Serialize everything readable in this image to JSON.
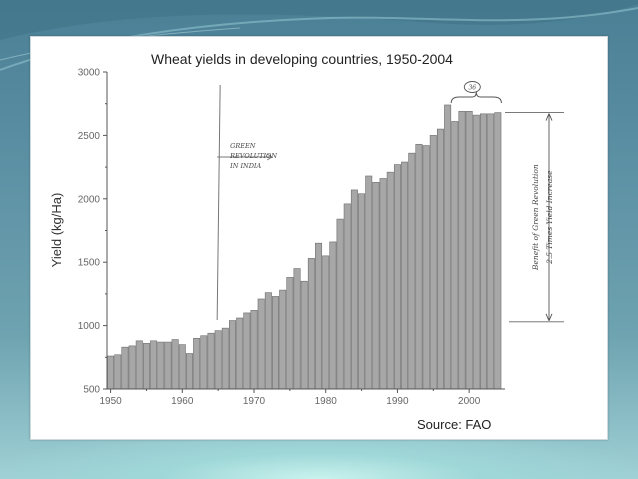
{
  "chart_data": {
    "type": "bar",
    "title": "Wheat yields in developing countries, 1950-2004",
    "ylabel": "Yield (kg/Ha)",
    "xlabel": "",
    "source": "Source:  FAO",
    "xlim": [
      1949.5,
      2005
    ],
    "ylim": [
      500,
      3000
    ],
    "x_ticks": [
      1950,
      1960,
      1970,
      1980,
      1990,
      2000
    ],
    "y_ticks": [
      500,
      1000,
      1500,
      2000,
      2500,
      3000
    ],
    "grid": false,
    "bar_color": "#a7a7a7",
    "x": [
      1950,
      1951,
      1952,
      1953,
      1954,
      1955,
      1956,
      1957,
      1958,
      1959,
      1960,
      1961,
      1962,
      1963,
      1964,
      1965,
      1966,
      1967,
      1968,
      1969,
      1970,
      1971,
      1972,
      1973,
      1974,
      1975,
      1976,
      1977,
      1978,
      1979,
      1980,
      1981,
      1982,
      1983,
      1984,
      1985,
      1986,
      1987,
      1988,
      1989,
      1990,
      1991,
      1992,
      1993,
      1994,
      1995,
      1996,
      1997,
      1998,
      1999,
      2000,
      2001,
      2002,
      2003,
      2004
    ],
    "values": [
      760,
      770,
      830,
      840,
      880,
      860,
      880,
      870,
      870,
      890,
      850,
      780,
      900,
      920,
      940,
      960,
      980,
      1040,
      1060,
      1100,
      1120,
      1210,
      1260,
      1230,
      1280,
      1380,
      1450,
      1350,
      1530,
      1650,
      1550,
      1660,
      1840,
      1960,
      2070,
      2040,
      2180,
      2130,
      2160,
      2210,
      2270,
      2290,
      2360,
      2430,
      2420,
      2500,
      2550,
      2740,
      2610,
      2690,
      2690,
      2660,
      2670,
      2670,
      2680
    ],
    "annotations": {
      "green_revolution_year": 1965,
      "green_revolution_text": [
        "GREEN",
        "REVOLUTION",
        "IN INDIA"
      ],
      "bracket_label": "36",
      "range_low": 1030,
      "range_high": 2680,
      "benefit_text": [
        "Benefit of Green Revolution",
        "2.5 Times Yield Increase"
      ]
    }
  }
}
